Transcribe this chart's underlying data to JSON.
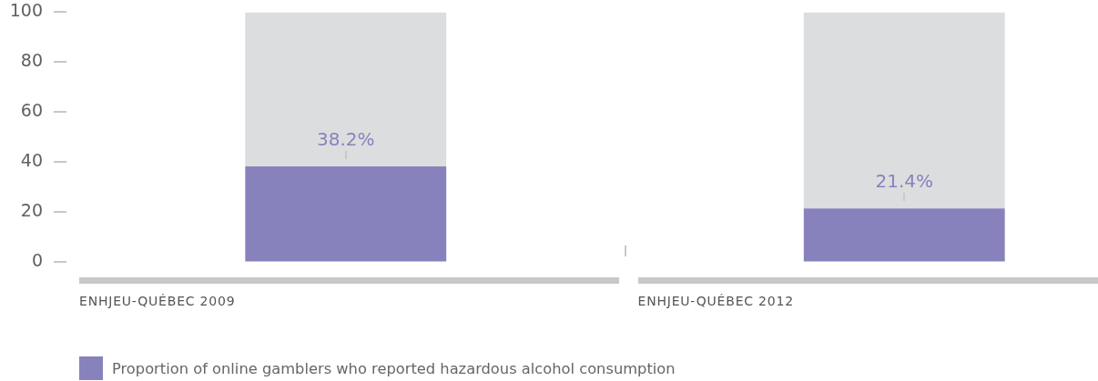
{
  "chart_data": {
    "type": "bar",
    "categories": [
      "ENHJEU-QUÉBEC 2009",
      "ENHJEU-QUÉBEC 2012"
    ],
    "stacked": true,
    "series": [
      {
        "name": "Proportion of online gamblers who reported hazardous alcohol consumption",
        "color": "#8882bc",
        "values": [
          38.2,
          21.4
        ],
        "value_labels": [
          "38.2%",
          "21.4%"
        ]
      },
      {
        "color": "#dcdddf",
        "values": [
          61.8,
          78.6
        ]
      }
    ],
    "ylim": [
      0,
      100
    ],
    "yticks": [
      0,
      20,
      40,
      60,
      80,
      100
    ],
    "legend": "bottom left"
  }
}
